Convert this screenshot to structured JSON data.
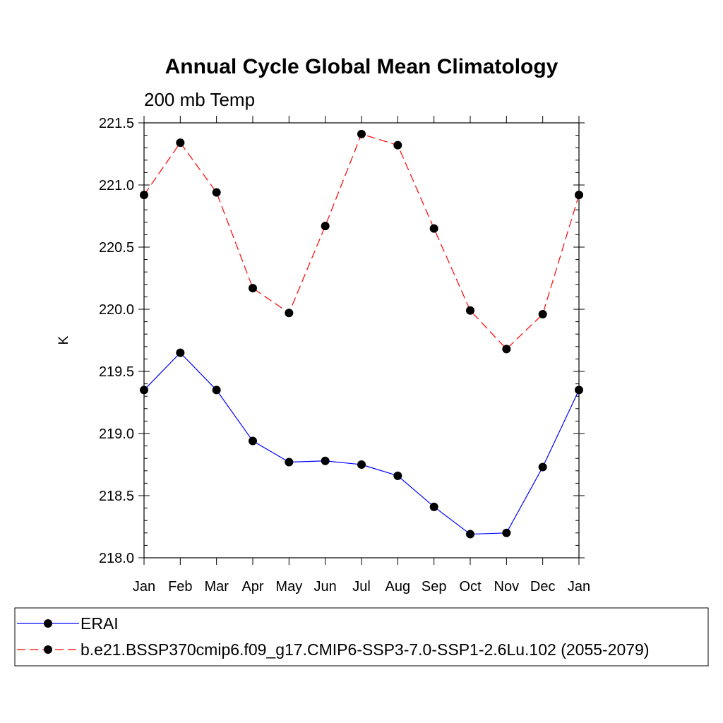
{
  "chart_data": {
    "type": "line",
    "title": "Annual Cycle Global Mean Climatology",
    "subtitle": "200 mb Temp",
    "xlabel": "",
    "ylabel": "K",
    "categories": [
      "Jan",
      "Feb",
      "Mar",
      "Apr",
      "May",
      "Jun",
      "Jul",
      "Aug",
      "Sep",
      "Oct",
      "Nov",
      "Dec",
      "Jan"
    ],
    "ylim": [
      218.0,
      221.5
    ],
    "yticks": [
      "218.0",
      "218.5",
      "219.0",
      "219.5",
      "220.0",
      "220.5",
      "221.0",
      "221.5"
    ],
    "grid": false,
    "legend_position": "bottom",
    "series": [
      {
        "name": "ERAI",
        "color": "#0000ff",
        "dash": "solid",
        "values": [
          219.35,
          219.65,
          219.35,
          218.94,
          218.77,
          218.78,
          218.75,
          218.66,
          218.41,
          218.19,
          218.2,
          218.73,
          219.35
        ]
      },
      {
        "name": "b.e21.BSSP370cmip6.f09_g17.CMIP6-SSP3-7.0-SSP1-2.6Lu.102 (2055-2079)",
        "color": "#ff0000",
        "dash": "dashed",
        "values": [
          220.92,
          221.34,
          220.94,
          220.17,
          219.97,
          220.67,
          221.41,
          221.32,
          220.65,
          219.99,
          219.68,
          219.96,
          220.92
        ]
      }
    ]
  }
}
